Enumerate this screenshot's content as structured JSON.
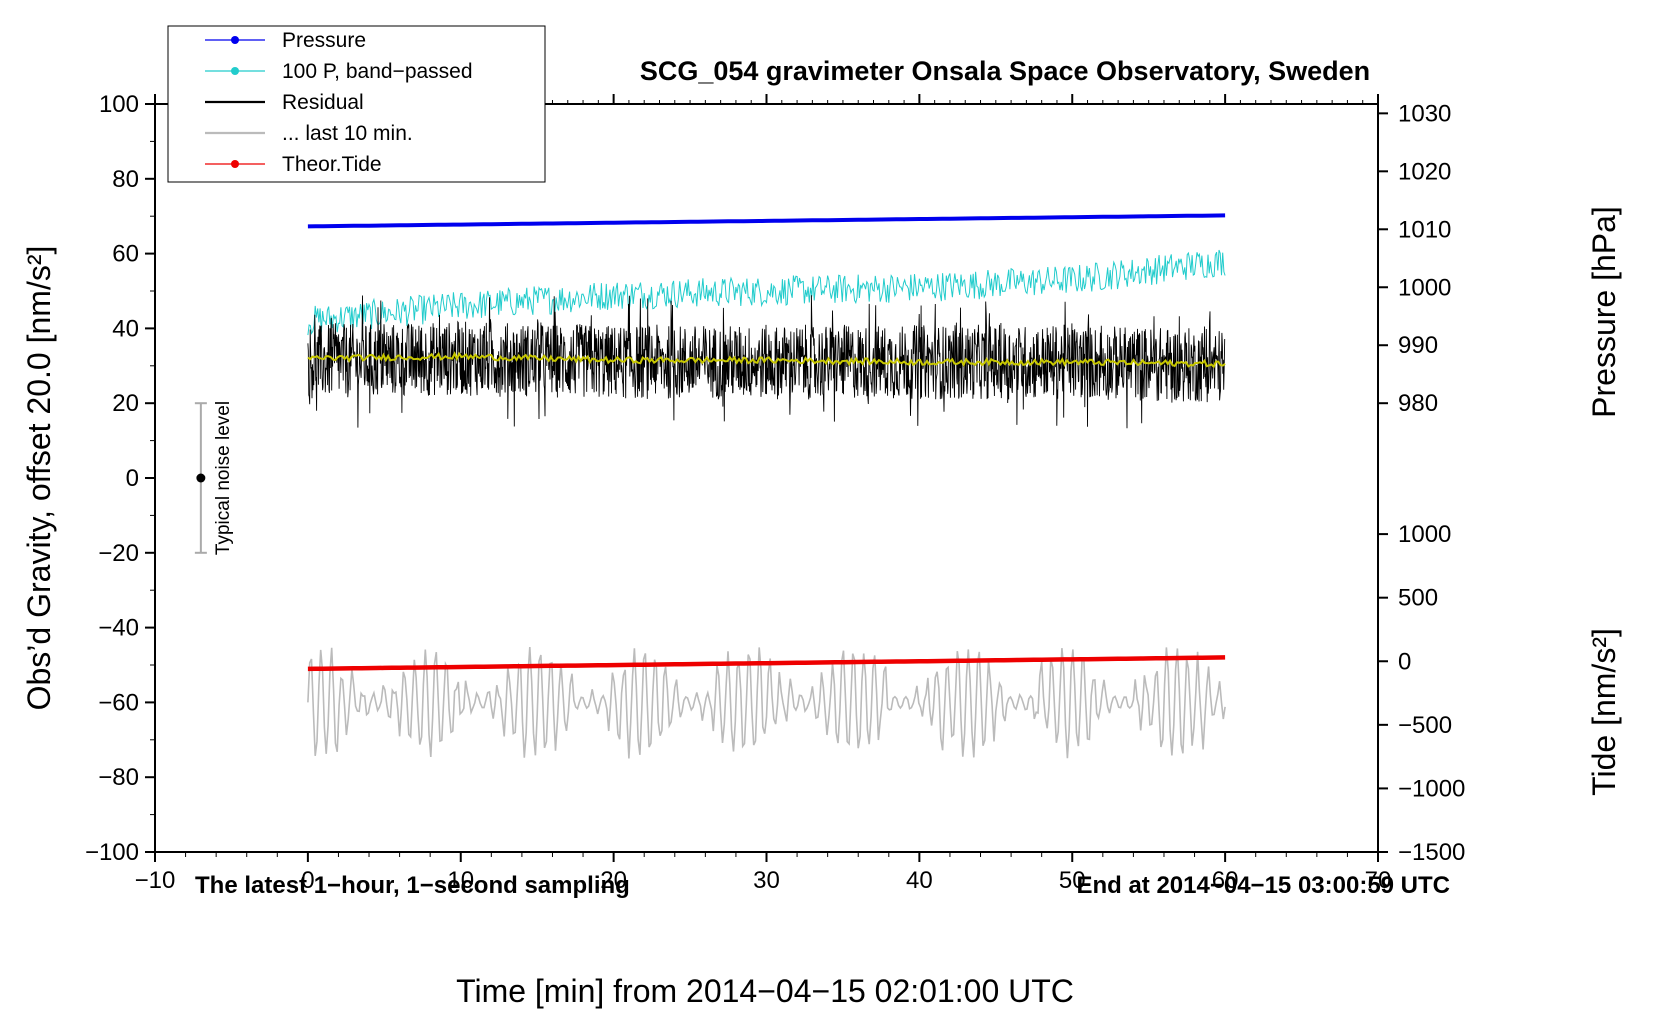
{
  "chart_data": {
    "type": "line",
    "title": "SCG_054 gravimeter Onsala Space Observatory, Sweden",
    "xlabel": "Time [min] from 2014−04−15 02:01:00 UTC",
    "ylabel_left": "Obs’d Gravity, offset 20.0 [nm/s²]",
    "ylabel_right_top": "Pressure [hPa]",
    "ylabel_right_bottom": "Tide [nm/s²]",
    "xlim": [
      -10,
      70
    ],
    "ylim": [
      -100,
      100
    ],
    "x_ticks": [
      "−10",
      "0",
      "10",
      "20",
      "30",
      "40",
      "50",
      "60",
      "70"
    ],
    "y_ticks_left": [
      "−100",
      "−80",
      "−60",
      "−40",
      "−20",
      "0",
      "20",
      "40",
      "60",
      "80",
      "100"
    ],
    "pressure_axis": {
      "ticks": [
        "980",
        "990",
        "1000",
        "1010",
        "1020",
        "1030"
      ],
      "ticks_at_gravity": [
        20,
        35.5,
        51,
        66.5,
        82,
        97.5
      ]
    },
    "tide_axis": {
      "ticks": [
        "−1500",
        "−1000",
        "−500",
        "0",
        "500",
        "1000"
      ],
      "ticks_at_gravity": [
        -100,
        -83,
        -66,
        -49,
        -32,
        -15
      ]
    },
    "legend": [
      {
        "label": "Pressure",
        "color": "#0000ee",
        "marker": true
      },
      {
        "label": "100 P, band−passed",
        "color": "#22cccc",
        "marker": true
      },
      {
        "label": "Residual",
        "color": "#000000",
        "marker": false
      },
      {
        "label": "... last 10 min.",
        "color": "#bbbbbb",
        "marker": false
      },
      {
        "label": "Theor.Tide",
        "color": "#ee0000",
        "marker": true
      }
    ],
    "series": [
      {
        "name": "Pressure",
        "axis": "pressure_hPa",
        "color": "#0000ee",
        "x": [
          0,
          60
        ],
        "values": [
          1010.5,
          1012.4
        ]
      },
      {
        "name": "100 P, band−passed",
        "color": "#22cccc",
        "x": [
          0,
          10,
          20,
          30,
          40,
          50,
          60
        ],
        "values": [
          42,
          46,
          49,
          50,
          51,
          53,
          58
        ],
        "noise_amplitude": 4
      },
      {
        "name": "Residual",
        "color": "#000000",
        "x": [
          0,
          10,
          20,
          30,
          40,
          50,
          60
        ],
        "values": [
          31,
          32,
          31,
          31,
          31,
          31,
          30
        ],
        "noise_amplitude": 10
      },
      {
        "name": "Residual (smoothed)",
        "color": "#c8c800",
        "x": [
          0,
          10,
          20,
          30,
          40,
          50,
          60
        ],
        "values": [
          32,
          32.5,
          31.5,
          31.5,
          31,
          31,
          30.5
        ]
      },
      {
        "name": "... last 10 min.",
        "color": "#bbbbbb",
        "x": [
          0,
          60
        ],
        "values": [
          -60,
          -60
        ],
        "oscillation_amplitude": 15
      },
      {
        "name": "Theor.Tide",
        "axis": "tide_nm_s2",
        "color": "#ee0000",
        "x": [
          0,
          60
        ],
        "values": [
          -60,
          30
        ]
      }
    ],
    "noise_level": {
      "label": "Typical noise level",
      "x": -7,
      "y": 0,
      "range": [
        -20,
        20
      ]
    },
    "annotations": {
      "bottom_left": "The latest 1−hour, 1−second sampling",
      "bottom_right": "End at 2014−04−15 03:00:59 UTC"
    }
  }
}
